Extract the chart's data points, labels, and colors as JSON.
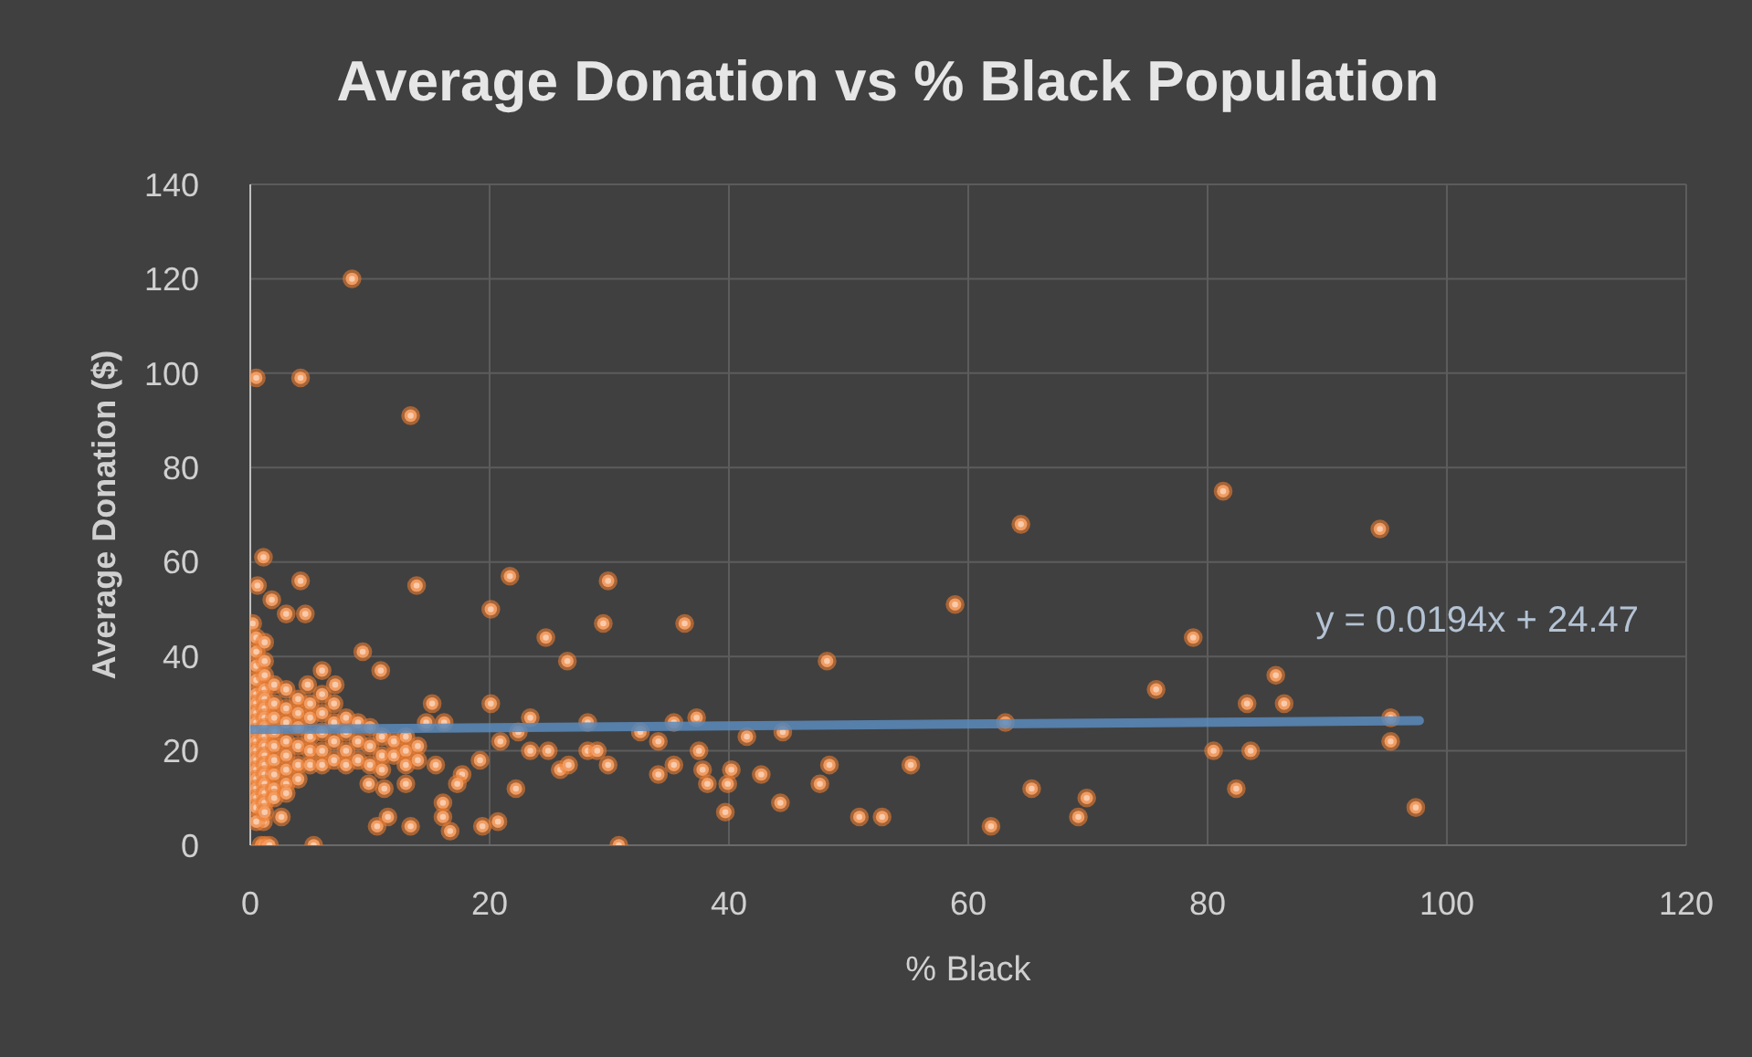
{
  "chart_data": {
    "type": "scatter",
    "title": "Average Donation vs % Black Population",
    "xlabel": "% Black",
    "ylabel": "Average Donation ($)",
    "xlim": [
      0,
      120
    ],
    "xticks": [
      0,
      20,
      40,
      60,
      80,
      100,
      120
    ],
    "ylim": [
      0,
      140
    ],
    "yticks": [
      0,
      20,
      40,
      60,
      80,
      100,
      120,
      140
    ],
    "grid": true,
    "marker": "circle",
    "annotations": [
      "y = 0.0194x + 24.47"
    ],
    "series": [
      {
        "color": "#ed7d31",
        "x": [
          8.5,
          0.5,
          4.2,
          13.4,
          1.1,
          0.6,
          4.2,
          1.8,
          3,
          4.6,
          13.9,
          0.2,
          20.1,
          21.7,
          29.9,
          29.5,
          36.3,
          24.7,
          26.5,
          9.4,
          10.9,
          6,
          4.8,
          7.1,
          15.2,
          20.1,
          23.4,
          28.2,
          32.6,
          35.4,
          37.3,
          14.7,
          16.2,
          20.9,
          22.4,
          23.4,
          24.9,
          25.9,
          26.6,
          28.2,
          29,
          29.9,
          34.1,
          34.1,
          35.4,
          37.5,
          37.8,
          38.2,
          39.7,
          19.2,
          17.7,
          17.3,
          22.2,
          15.5,
          16.1,
          16.1,
          16.7,
          19.4,
          20.7,
          13.4,
          10.6,
          11.5,
          9.9,
          11.2,
          13,
          30.8,
          5.3,
          0.9,
          1.1,
          2.6,
          41.5,
          44.5,
          48.2,
          58.9,
          64.4,
          78.8,
          75.7,
          63.1,
          39.9,
          40.2,
          42.7,
          44.3,
          47.6,
          48.4,
          55.2,
          50.9,
          52.8,
          61.9,
          65.3,
          69.9,
          69.2,
          81.3,
          94.4,
          85.7,
          83.3,
          86.4,
          95.3,
          95.3,
          80.5,
          83.6,
          82.4,
          97.4,
          0.5,
          0.5,
          0.5,
          0.5,
          0.5,
          0.5,
          0.5,
          0.5,
          0.5,
          0.5,
          0.5,
          0.5,
          0.5,
          0.5,
          0.5,
          0.5,
          0.5,
          0.5,
          1.2,
          1.2,
          1.2,
          1.2,
          1.2,
          1.2,
          1.2,
          1.2,
          1.2,
          1.2,
          1.2,
          1.2,
          1.2,
          1.2,
          1.2,
          1.2,
          1.2,
          1.2,
          2,
          2,
          2,
          2,
          2,
          2,
          2,
          2,
          2,
          3,
          3,
          3,
          3,
          3,
          3,
          3,
          3,
          4,
          4,
          4,
          4,
          4,
          4,
          5,
          5,
          5,
          5,
          5,
          6,
          6,
          6,
          6,
          6,
          7,
          7,
          7,
          7,
          8,
          8,
          8,
          8,
          9,
          9,
          9,
          10,
          10,
          10,
          11,
          11,
          11,
          12,
          12,
          13,
          13,
          13,
          14,
          14,
          1.6
        ],
        "values": [
          120,
          99,
          99,
          91,
          61,
          55,
          56,
          52,
          49,
          49,
          55,
          47,
          50,
          57,
          56,
          47,
          47,
          44,
          39,
          41,
          37,
          37,
          34,
          34,
          30,
          30,
          27,
          26,
          24,
          26,
          27,
          26,
          26,
          22,
          24,
          20,
          20,
          16,
          17,
          20,
          20,
          17,
          22,
          15,
          17,
          20,
          16,
          13,
          7,
          18,
          15,
          13,
          12,
          17,
          9,
          6,
          3,
          4,
          5,
          4,
          4,
          6,
          13,
          12,
          13,
          0,
          0,
          0,
          5,
          6,
          23,
          24,
          39,
          51,
          68,
          44,
          33,
          26,
          13,
          16,
          15,
          9,
          13,
          17,
          17,
          6,
          6,
          4,
          12,
          10,
          6,
          75,
          67,
          36,
          30,
          30,
          27,
          22,
          20,
          20,
          12,
          8,
          44,
          41,
          38,
          35,
          32,
          30,
          28,
          26,
          24,
          22,
          20,
          18,
          16,
          14,
          12,
          10,
          8,
          5,
          43,
          39,
          36,
          33,
          31,
          29,
          27,
          25,
          23,
          21,
          19,
          17,
          15,
          13,
          11,
          9,
          7,
          0,
          34,
          30,
          27,
          24,
          21,
          18,
          15,
          12,
          10,
          33,
          29,
          26,
          22,
          19,
          16,
          13,
          11,
          31,
          28,
          25,
          21,
          17,
          14,
          30,
          27,
          23,
          20,
          17,
          32,
          28,
          24,
          20,
          17,
          30,
          26,
          22,
          18,
          27,
          24,
          20,
          17,
          26,
          22,
          18,
          25,
          21,
          17,
          23,
          19,
          16,
          22,
          19,
          23,
          20,
          17,
          21,
          18,
          0
        ]
      },
      {
        "type": "line",
        "marker": "none",
        "color": "#5b8bbd",
        "x": [
          0,
          97.7
        ],
        "values": [
          24.5,
          26.4
        ]
      }
    ]
  }
}
